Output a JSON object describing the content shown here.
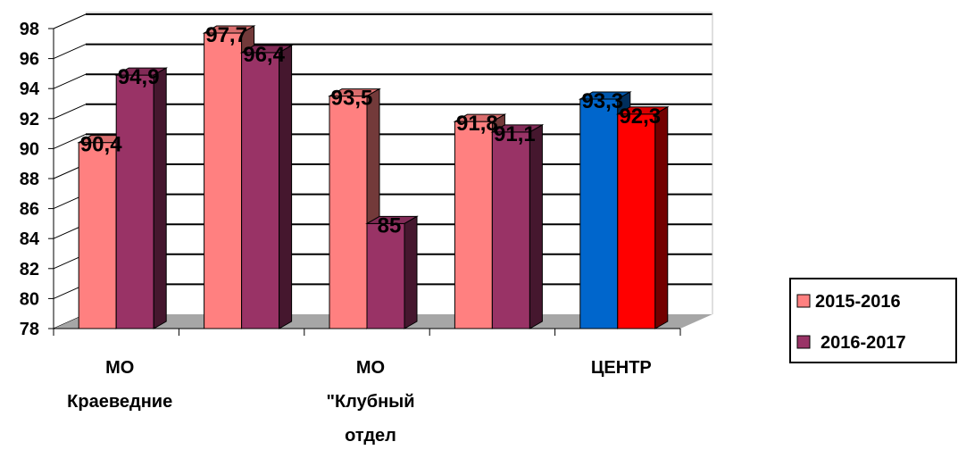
{
  "chart_data": {
    "type": "bar",
    "categories": [
      [
        "МО",
        "Краеведние"
      ],
      [],
      [
        "МО",
        "\"Клубный",
        "отдел"
      ],
      [],
      [
        "ЦЕНТР"
      ]
    ],
    "series": [
      {
        "name": "2015-2016",
        "values": [
          90.4,
          97.7,
          93.5,
          91.8,
          93.3
        ]
      },
      {
        "name": "2016-2017",
        "values": [
          94.9,
          96.4,
          85,
          91.1,
          92.3
        ]
      }
    ],
    "data_labels": [
      [
        "90,4",
        "97,7",
        "93,5",
        "91,8",
        "93,3"
      ],
      [
        "94,9",
        "96,4",
        "85",
        "91,1",
        "92,3"
      ]
    ],
    "ylim": [
      78,
      98
    ],
    "yticks": [
      "78",
      "80",
      "82",
      "84",
      "86",
      "88",
      "90",
      "92",
      "94",
      "96",
      "98"
    ],
    "grid": true,
    "three_d": true,
    "legend_position": "right",
    "colors": {
      "series": [
        "#ff8080",
        "#993366"
      ],
      "highlight_bars": [
        "#0066cc",
        "#ff0000"
      ],
      "floor": "#a6a6a6",
      "gridline": "#000000"
    }
  }
}
